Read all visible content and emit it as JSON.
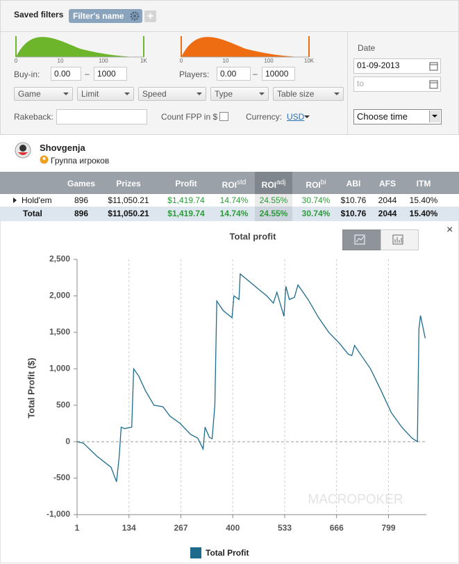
{
  "filters": {
    "saved_filters_label": "Saved filters",
    "filter_tag": "Filter's name",
    "buyin": {
      "label": "Buy-in:",
      "from": "0.00",
      "to": "1000",
      "scale": [
        "0",
        "10",
        "100",
        "1K"
      ]
    },
    "players": {
      "label": "Players:",
      "from": "0.00",
      "to": "10000",
      "scale": [
        "0",
        "10",
        "100",
        "10K"
      ]
    },
    "range_separator": "–",
    "dropdowns": [
      "Game",
      "Limit",
      "Speed",
      "Type",
      "Table size"
    ],
    "rakeback_label": "Rakeback:",
    "count_fpp_label": "Count FPP in $",
    "currency_label": "Currency:",
    "currency": "USD",
    "date_label": "Date",
    "date_from": "01-09-2013",
    "date_to_placeholder": "to",
    "time_select": "Choose time"
  },
  "player": {
    "name": "Shovgenja",
    "group": "Группа игроков"
  },
  "table": {
    "headers": [
      {
        "text": "Games"
      },
      {
        "text": "Prizes"
      },
      {
        "text": "Profit"
      },
      {
        "text": "ROI",
        "sup": "std"
      },
      {
        "text": "ROI",
        "sup": "adj"
      },
      {
        "text": "ROI",
        "sup": "bi"
      },
      {
        "text": "ABI"
      },
      {
        "text": "AFS"
      },
      {
        "text": "ITM"
      }
    ],
    "rows": [
      [
        "Hold'em",
        "896",
        "$11,050.21",
        "$1,419.74",
        "14.74%",
        "24.55%",
        "30.74%",
        "$10.76",
        "2044",
        "15.40%"
      ],
      [
        "Total",
        "896",
        "$11,050.21",
        "$1,419.74",
        "14.74%",
        "24.55%",
        "30.74%",
        "$10.76",
        "2044",
        "15.40%"
      ]
    ]
  },
  "chart_data": {
    "type": "line",
    "title": "Total profit",
    "y_label": "Total Profit ($)",
    "watermark": "MACROPOKER",
    "x": [
      1,
      17,
      52,
      88,
      102,
      109,
      114,
      123,
      141,
      146,
      159,
      176,
      198,
      221,
      239,
      265,
      292,
      310,
      324,
      329,
      340,
      347,
      354,
      359,
      375,
      398,
      403,
      416,
      419,
      442,
      464,
      487,
      504,
      513,
      531,
      536,
      545,
      558,
      567,
      593,
      620,
      646,
      673,
      696,
      705,
      712,
      727,
      753,
      780,
      806,
      833,
      859,
      873,
      877,
      881,
      893
    ],
    "series": [
      {
        "name": "Total Profit",
        "color": "#1d6b8c",
        "values": [
          0,
          -20,
          -200,
          -350,
          -550,
          -200,
          200,
          180,
          200,
          1000,
          900,
          700,
          500,
          480,
          350,
          250,
          100,
          50,
          -100,
          200,
          60,
          40,
          500,
          1930,
          1800,
          1700,
          2000,
          1950,
          2300,
          2200,
          2100,
          2000,
          1900,
          2050,
          1720,
          2130,
          1950,
          1980,
          2150,
          1950,
          1700,
          1500,
          1350,
          1200,
          1180,
          1320,
          1200,
          1000,
          700,
          400,
          200,
          50,
          0,
          1550,
          1730,
          1420
        ]
      }
    ],
    "xlim": [
      1,
      896
    ],
    "ylim": [
      -1000,
      2500
    ],
    "xticks": [
      1,
      134,
      267,
      400,
      533,
      666,
      799
    ],
    "yticks": [
      {
        "value": -1000,
        "label": "-1,000"
      },
      -500,
      0,
      500,
      {
        "value": 1000,
        "label": "1,000"
      },
      {
        "value": 1500,
        "label": "1,500"
      },
      {
        "value": 2000,
        "label": "2,000"
      },
      {
        "value": 2500,
        "label": "2,500"
      }
    ],
    "grid": true
  }
}
